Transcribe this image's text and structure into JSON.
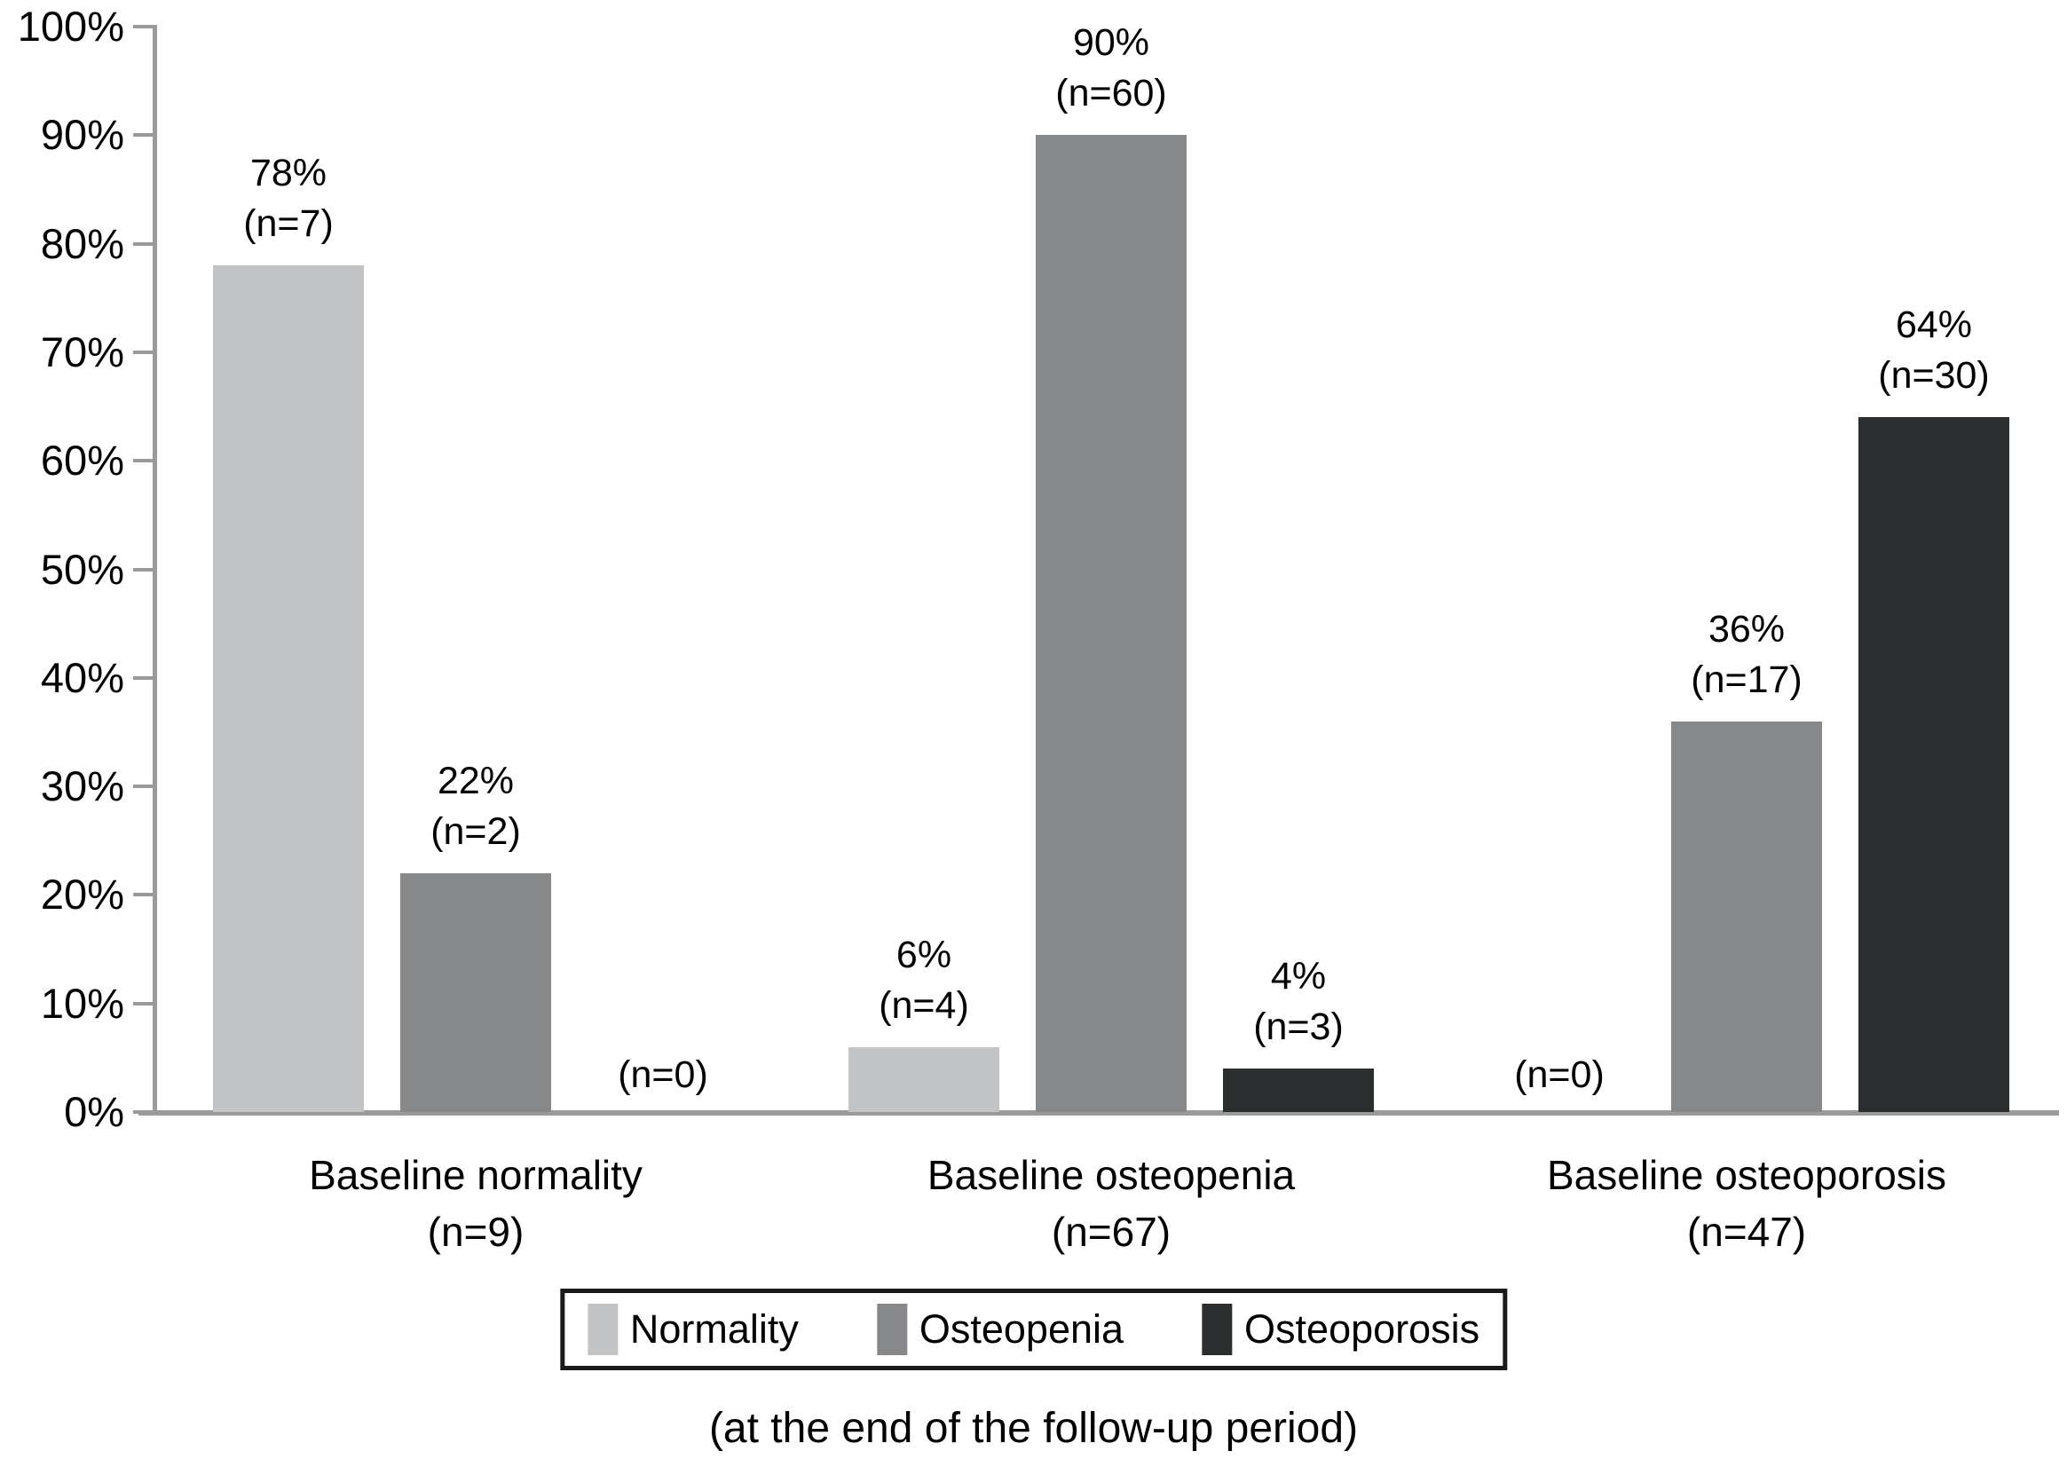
{
  "chart_data": {
    "type": "bar",
    "title": "",
    "xlabel": "",
    "ylabel": "",
    "y_axis": {
      "min": 0,
      "max": 100,
      "step": 10,
      "tick_suffix": "%"
    },
    "grid": false,
    "legend_position": "bottom",
    "series": [
      {
        "name": "Normality",
        "color": "#c2c3c4"
      },
      {
        "name": "Osteopenia",
        "color": "#87888a"
      },
      {
        "name": "Osteoporosis",
        "color": "#2b2e2e"
      }
    ],
    "groups": [
      {
        "label": "Baseline normality",
        "sublabel": "(n=9)",
        "bars": [
          {
            "series": "Normality",
            "value": 78,
            "n": 7,
            "label_top": "78%",
            "label_bottom": "(n=7)"
          },
          {
            "series": "Osteopenia",
            "value": 22,
            "n": 2,
            "label_top": "22%",
            "label_bottom": "(n=2)"
          },
          {
            "series": "Osteoporosis",
            "value": 0,
            "n": 0,
            "label_top": "",
            "label_bottom": "(n=0)"
          }
        ]
      },
      {
        "label": "Baseline osteopenia",
        "sublabel": "(n=67)",
        "bars": [
          {
            "series": "Normality",
            "value": 6,
            "n": 4,
            "label_top": "6%",
            "label_bottom": "(n=4)"
          },
          {
            "series": "Osteopenia",
            "value": 90,
            "n": 60,
            "label_top": "90%",
            "label_bottom": "(n=60)"
          },
          {
            "series": "Osteoporosis",
            "value": 4,
            "n": 3,
            "label_top": "4%",
            "label_bottom": "(n=3)"
          }
        ]
      },
      {
        "label": "Baseline osteoporosis",
        "sublabel": "(n=47)",
        "bars": [
          {
            "series": "Normality",
            "value": 0,
            "n": 0,
            "label_top": "",
            "label_bottom": "(n=0)"
          },
          {
            "series": "Osteopenia",
            "value": 36,
            "n": 17,
            "label_top": "36%",
            "label_bottom": "(n=17)"
          },
          {
            "series": "Osteoporosis",
            "value": 64,
            "n": 30,
            "label_top": "64%",
            "label_bottom": "(n=30)"
          }
        ]
      }
    ],
    "caption": "(at the end of the follow-up period)"
  },
  "legend": {
    "items": [
      {
        "label": "Normality"
      },
      {
        "label": "Osteopenia"
      },
      {
        "label": "Osteoporosis"
      }
    ]
  },
  "caption_text": "(at the end of the follow-up period)"
}
